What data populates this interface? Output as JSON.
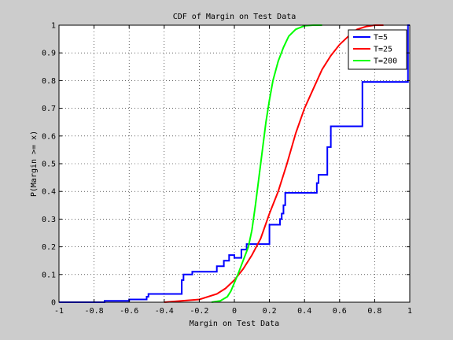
{
  "chart_data": {
    "type": "line",
    "title": "CDF of Margin on Test Data",
    "xlabel": "Margin on Test Data",
    "ylabel": "P(Margin >= x)",
    "xlim": [
      -1,
      1
    ],
    "ylim": [
      0,
      1
    ],
    "x_ticks": [
      "-1",
      "-0.8",
      "-0.6",
      "-0.4",
      "-0.2",
      "0",
      "0.2",
      "0.4",
      "0.6",
      "0.8",
      "1"
    ],
    "y_ticks": [
      "0",
      "0.1",
      "0.2",
      "0.3",
      "0.4",
      "0.5",
      "0.6",
      "0.7",
      "0.8",
      "0.9",
      "1"
    ],
    "grid": true,
    "legend_position": "top-right",
    "series": [
      {
        "name": "T=5",
        "color": "#0000ff",
        "step": true,
        "points": [
          [
            -1.0,
            0.0
          ],
          [
            -0.74,
            0.0
          ],
          [
            -0.74,
            0.005
          ],
          [
            -0.6,
            0.005
          ],
          [
            -0.6,
            0.01
          ],
          [
            -0.5,
            0.01
          ],
          [
            -0.5,
            0.02
          ],
          [
            -0.49,
            0.02
          ],
          [
            -0.49,
            0.03
          ],
          [
            -0.3,
            0.03
          ],
          [
            -0.3,
            0.08
          ],
          [
            -0.29,
            0.08
          ],
          [
            -0.29,
            0.1
          ],
          [
            -0.24,
            0.1
          ],
          [
            -0.24,
            0.11
          ],
          [
            -0.1,
            0.11
          ],
          [
            -0.1,
            0.13
          ],
          [
            -0.06,
            0.13
          ],
          [
            -0.06,
            0.15
          ],
          [
            -0.03,
            0.15
          ],
          [
            -0.03,
            0.17
          ],
          [
            0.0,
            0.17
          ],
          [
            0.0,
            0.16
          ],
          [
            0.04,
            0.16
          ],
          [
            0.04,
            0.19
          ],
          [
            0.07,
            0.19
          ],
          [
            0.07,
            0.21
          ],
          [
            0.2,
            0.21
          ],
          [
            0.2,
            0.28
          ],
          [
            0.26,
            0.28
          ],
          [
            0.26,
            0.3
          ],
          [
            0.27,
            0.3
          ],
          [
            0.27,
            0.32
          ],
          [
            0.28,
            0.32
          ],
          [
            0.28,
            0.35
          ],
          [
            0.29,
            0.35
          ],
          [
            0.29,
            0.395
          ],
          [
            0.47,
            0.395
          ],
          [
            0.47,
            0.43
          ],
          [
            0.48,
            0.43
          ],
          [
            0.48,
            0.46
          ],
          [
            0.53,
            0.46
          ],
          [
            0.53,
            0.56
          ],
          [
            0.55,
            0.56
          ],
          [
            0.55,
            0.635
          ],
          [
            0.73,
            0.635
          ],
          [
            0.73,
            0.795
          ],
          [
            0.99,
            0.795
          ],
          [
            0.99,
            1.0
          ],
          [
            1.0,
            1.0
          ]
        ]
      },
      {
        "name": "T=25",
        "color": "#ff0000",
        "step": false,
        "points": [
          [
            -0.4,
            0.0
          ],
          [
            -0.3,
            0.005
          ],
          [
            -0.2,
            0.01
          ],
          [
            -0.1,
            0.03
          ],
          [
            -0.05,
            0.05
          ],
          [
            0.0,
            0.08
          ],
          [
            0.05,
            0.12
          ],
          [
            0.1,
            0.17
          ],
          [
            0.15,
            0.23
          ],
          [
            0.2,
            0.32
          ],
          [
            0.25,
            0.4
          ],
          [
            0.3,
            0.5
          ],
          [
            0.35,
            0.61
          ],
          [
            0.4,
            0.7
          ],
          [
            0.45,
            0.77
          ],
          [
            0.5,
            0.84
          ],
          [
            0.55,
            0.89
          ],
          [
            0.6,
            0.93
          ],
          [
            0.65,
            0.96
          ],
          [
            0.7,
            0.985
          ],
          [
            0.75,
            0.995
          ],
          [
            0.8,
            1.0
          ],
          [
            0.85,
            1.0
          ]
        ]
      },
      {
        "name": "T=200",
        "color": "#00ff00",
        "step": false,
        "points": [
          [
            -0.13,
            0.0
          ],
          [
            -0.08,
            0.005
          ],
          [
            -0.04,
            0.02
          ],
          [
            -0.02,
            0.04
          ],
          [
            0.0,
            0.07
          ],
          [
            0.02,
            0.1
          ],
          [
            0.05,
            0.15
          ],
          [
            0.08,
            0.2
          ],
          [
            0.1,
            0.26
          ],
          [
            0.12,
            0.35
          ],
          [
            0.14,
            0.45
          ],
          [
            0.16,
            0.55
          ],
          [
            0.18,
            0.65
          ],
          [
            0.2,
            0.73
          ],
          [
            0.22,
            0.8
          ],
          [
            0.25,
            0.87
          ],
          [
            0.28,
            0.92
          ],
          [
            0.31,
            0.96
          ],
          [
            0.35,
            0.985
          ],
          [
            0.4,
            0.998
          ],
          [
            0.45,
            1.0
          ],
          [
            0.5,
            1.0
          ]
        ]
      }
    ]
  }
}
